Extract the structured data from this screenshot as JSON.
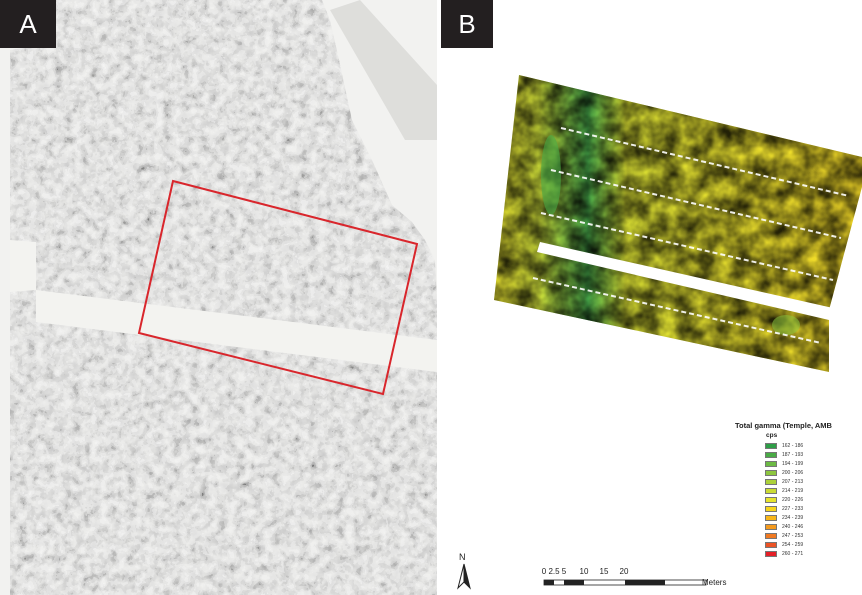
{
  "panel_a": {
    "label": "A"
  },
  "panel_b": {
    "label": "B"
  },
  "legend": {
    "title": "Total gamma (Temple, AMB",
    "unit": "cps",
    "classes": [
      {
        "range": "162 - 186",
        "color": "#2e9e47"
      },
      {
        "range": "187 - 193",
        "color": "#4aab46"
      },
      {
        "range": "194 - 199",
        "color": "#6cba44"
      },
      {
        "range": "200 - 206",
        "color": "#8dc63f"
      },
      {
        "range": "207 - 213",
        "color": "#acd13a"
      },
      {
        "range": "214 - 219",
        "color": "#cbdb34"
      },
      {
        "range": "220 - 226",
        "color": "#e6e42d"
      },
      {
        "range": "227 - 233",
        "color": "#f7d51c"
      },
      {
        "range": "234 - 239",
        "color": "#f8b61a"
      },
      {
        "range": "240 - 246",
        "color": "#f49a1e"
      },
      {
        "range": "247 - 253",
        "color": "#f07a22"
      },
      {
        "range": "254 - 259",
        "color": "#ec5426"
      },
      {
        "range": "260 - 271",
        "color": "#e52028"
      }
    ]
  },
  "north_arrow": {
    "letter": "N"
  },
  "scale_bar": {
    "ticks": [
      "0",
      "2.5",
      "5",
      "10",
      "15",
      "20"
    ],
    "units": "Meters"
  }
}
